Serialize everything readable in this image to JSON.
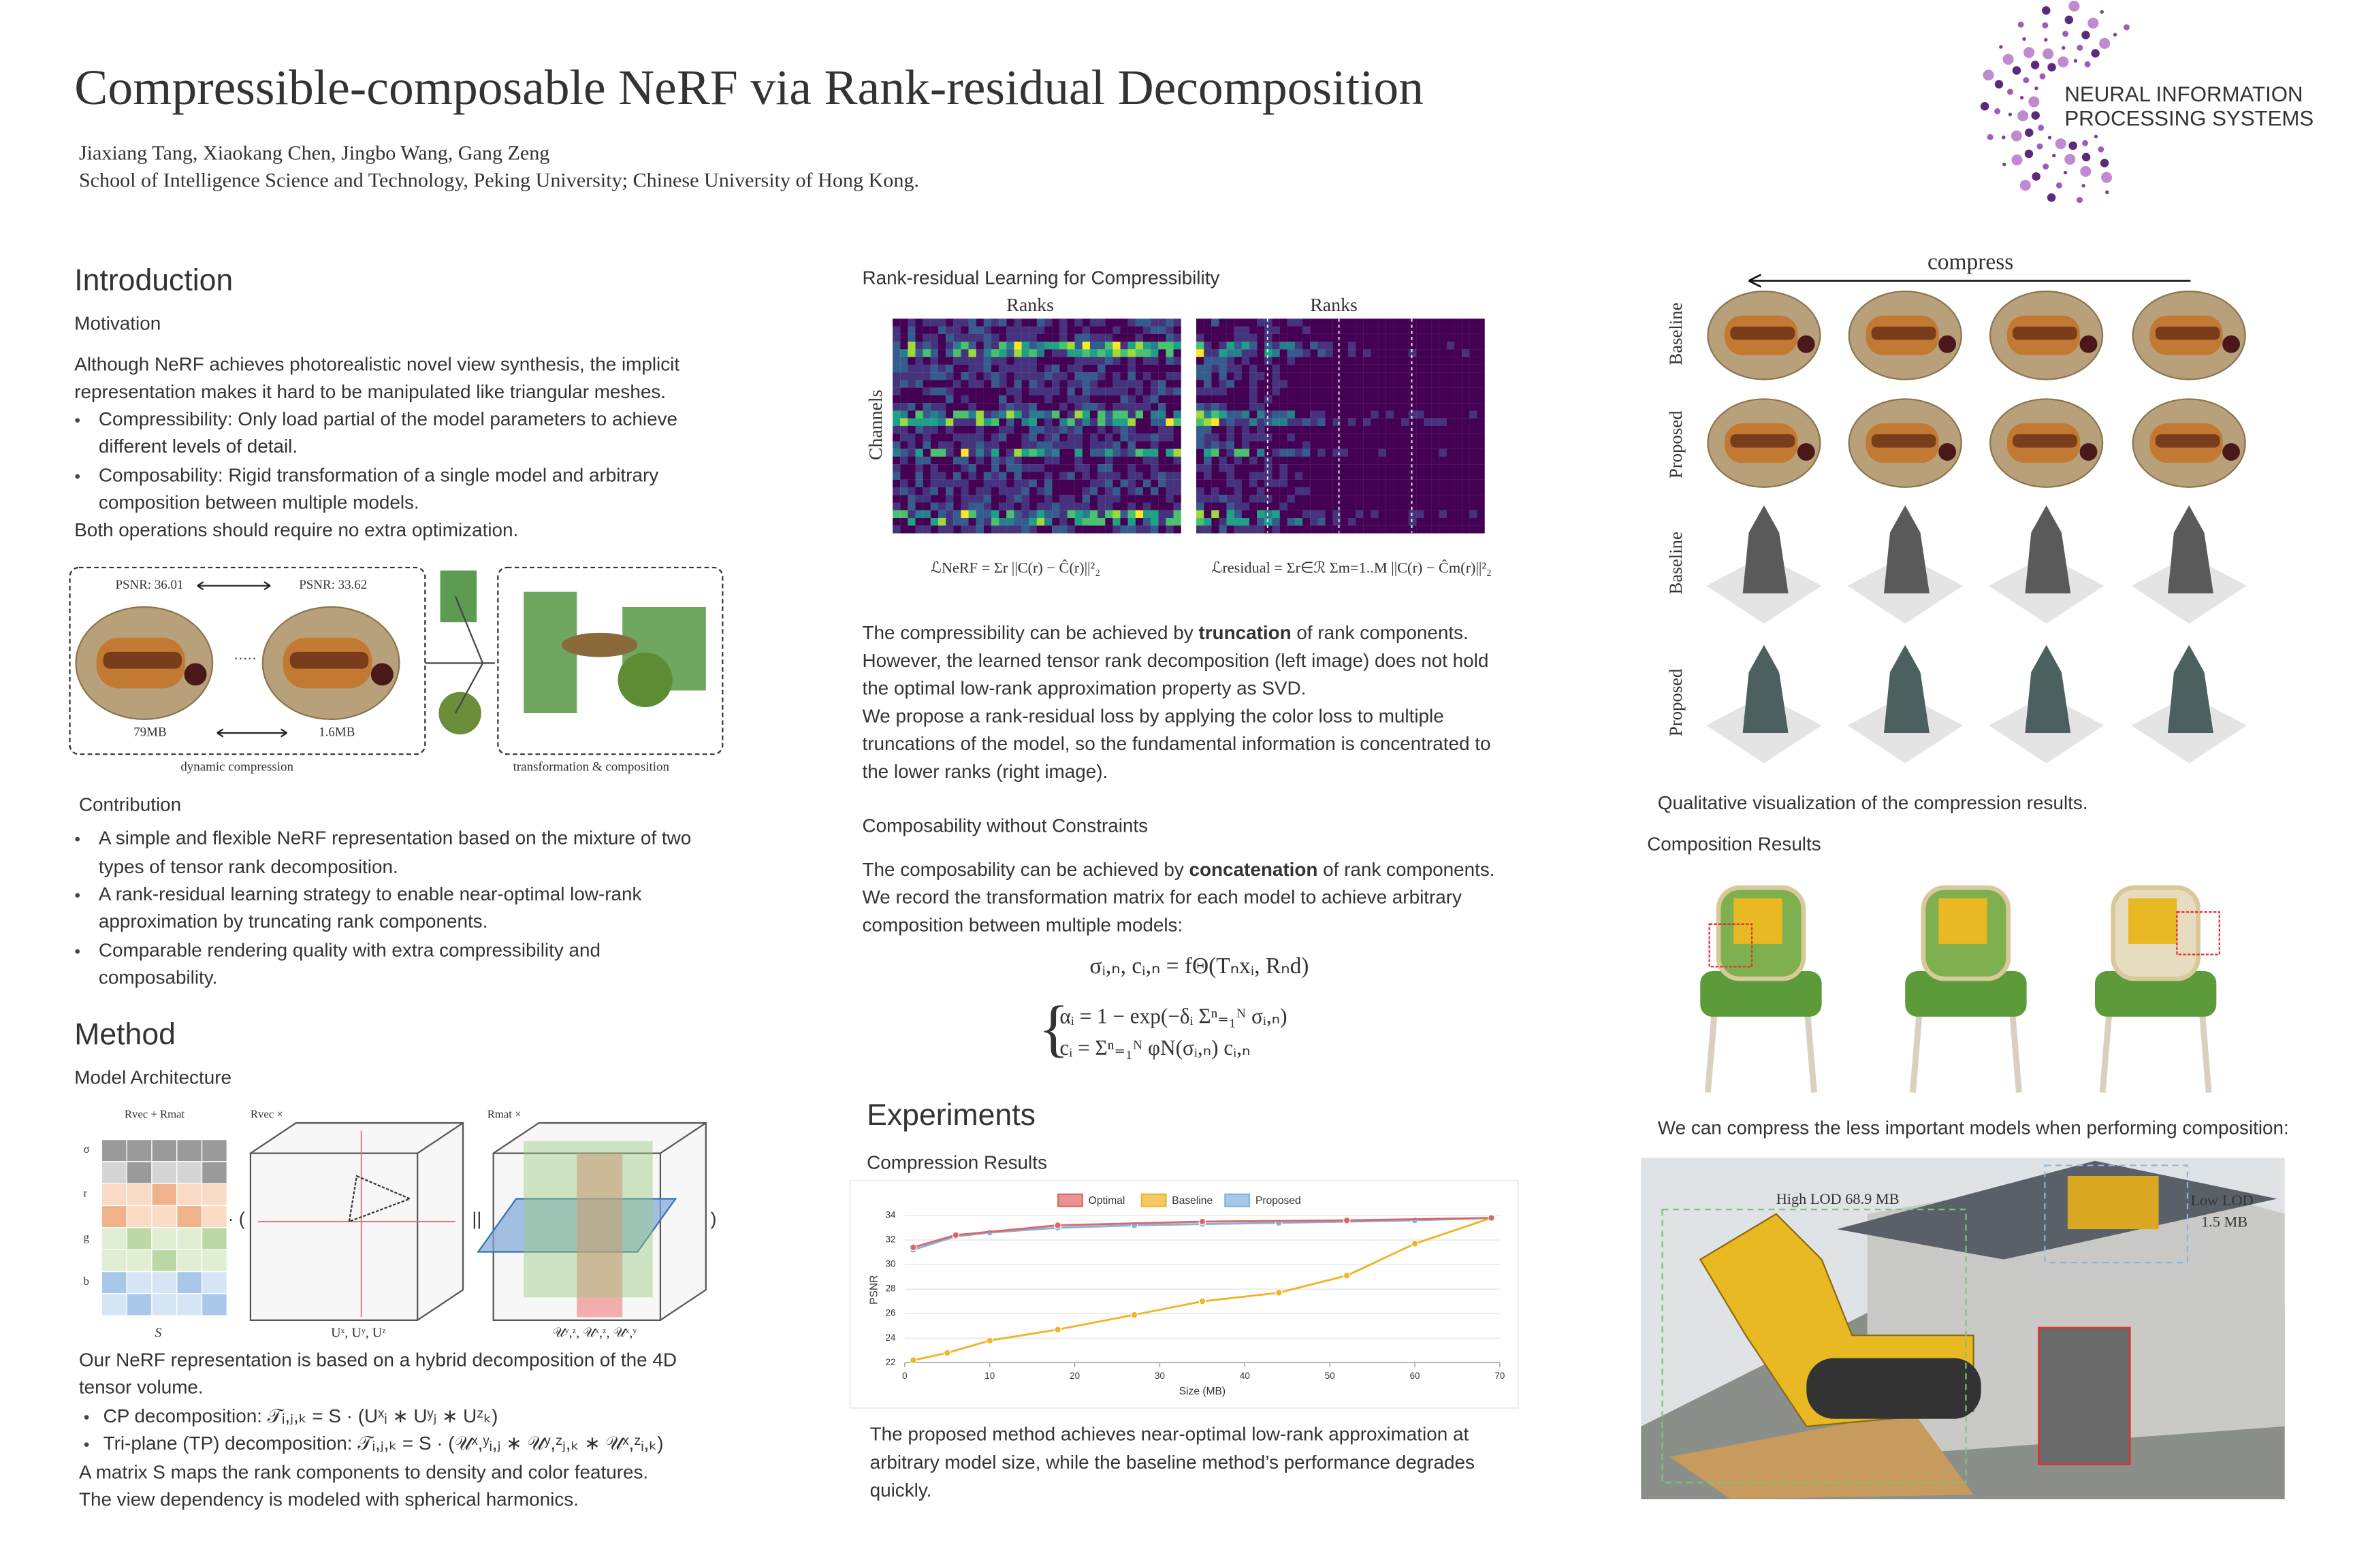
{
  "header": {
    "title": "Compressible-composable NeRF via Rank-residual Decomposition",
    "authors": "Jiaxiang Tang, Xiaokang Chen, Jingbo Wang, Gang Zeng",
    "affiliation": "School of Intelligence Science and Technology, Peking University; Chinese University of Hong Kong.",
    "logo": [
      "NEURAL INFORMATION",
      "PROCESSING SYSTEMS"
    ]
  },
  "introduction": {
    "heading": "Introduction",
    "motivation": {
      "heading": "Motivation",
      "lines": [
        "Although NeRF achieves photorealistic novel view synthesis, the implicit",
        "representation makes it hard to be manipulated like triangular meshes."
      ],
      "bullets": [
        [
          "Compressibility: Only load partial of the model parameters to achieve",
          "different levels of detail."
        ],
        [
          "Composability: Rigid transformation of a single model and arbitrary",
          "composition between multiple models."
        ]
      ],
      "closing": "Both operations should require no extra optimization."
    },
    "figure": {
      "psnr_high": "PSNR: 36.01",
      "psnr_low": "PSNR: 33.62",
      "size_high": "79MB",
      "size_low": "1.6MB",
      "caption_left": "dynamic compression",
      "caption_right": "transformation & composition"
    },
    "contribution": {
      "heading": "Contribution",
      "bullets": [
        [
          "A simple and flexible NeRF representation based on the mixture of two",
          "types of tensor rank decomposition."
        ],
        [
          "A rank-residual learning strategy to enable near-optimal low-rank",
          "approximation by truncating rank components."
        ],
        [
          "Comparable rendering quality with extra compressibility and",
          "composability."
        ]
      ]
    }
  },
  "method": {
    "heading": "Method",
    "subheading": "Model Architecture",
    "figure": {
      "label_sum": "Rvec + Rmat",
      "label_vec": "Rvec ×",
      "label_mat": "Rmat ×",
      "rows": [
        "σ",
        "r",
        "g",
        "b"
      ],
      "label_s": "S",
      "label_u_vec": "Uˣ, Uʸ, Uᶻ",
      "label_u_mat": "𝒰ʸ,ᶻ, 𝒰ˣ,ᶻ, 𝒰ˣ,ʸ"
    },
    "lines_before": [
      "Our NeRF representation is based on a hybrid decomposition of the 4D",
      "tensor volume."
    ],
    "bullets": [
      "CP decomposition:  𝒯ᵢ,ⱼ,ₖ = S · (Uˣᵢ ∗ Uʸⱼ ∗ Uᶻₖ)",
      "Tri-plane (TP) decomposition:  𝒯ᵢ,ⱼ,ₖ = S · (𝒰ˣ,ʸᵢ,ⱼ ∗ 𝒰ʸ,ᶻⱼ,ₖ ∗ 𝒰ˣ,ᶻᵢ,ₖ)"
    ],
    "lines_after": [
      "A matrix S maps the rank components to density and color features.",
      "The view dependency is modeled with spherical harmonics."
    ]
  },
  "compressibility": {
    "heading": "Rank-residual Learning for Compressibility",
    "axis_x": "Ranks",
    "axis_y": "Channels",
    "loss_nerf": "ℒNeRF = Σr ||C(r) − Ĉ(r)||²₂",
    "loss_residual": "ℒresidual = Σr∈ℛ Σm=1..M ||C(r) − Ĉm(r)||²₂",
    "paragraph": [
      [
        "The compressibility can be achieved by ",
        "truncation",
        " of rank components."
      ],
      [
        "However,  the learned tensor rank decomposition (left image) does not hold"
      ],
      [
        "the optimal low-rank approximation property as SVD."
      ],
      [
        "We propose a rank-residual loss by applying the color loss to multiple"
      ],
      [
        "truncations of the model, so the fundamental information is concentrated to"
      ],
      [
        "the lower ranks (right image)."
      ]
    ]
  },
  "composability": {
    "heading": "Composability without Constraints",
    "paragraph": [
      [
        "The composability can be achieved by ",
        "concatenation",
        " of rank components."
      ],
      [
        "We record the transformation matrix for each model to achieve arbitrary"
      ],
      [
        "composition between multiple models:"
      ]
    ],
    "equations": [
      "σᵢ,ₙ, cᵢ,ₙ = fΘ(Tₙxᵢ, Rₙd)",
      "αᵢ = 1 − exp(−δᵢ Σⁿ₌₁ᴺ σᵢ,ₙ)",
      "cᵢ = Σⁿ₌₁ᴺ φN(σᵢ,ₙ) cᵢ,ₙ"
    ]
  },
  "experiments": {
    "heading": "Experiments",
    "subheading": "Compression Results",
    "chart": {
      "type": "line",
      "xlabel": "Size (MB)",
      "ylabel": "PSNR",
      "xlim": [
        0,
        70
      ],
      "ylim": [
        22,
        34
      ],
      "xticks": [
        0,
        10,
        20,
        30,
        40,
        50,
        60,
        70
      ],
      "yticks": [
        22,
        24,
        26,
        28,
        30,
        32,
        34
      ],
      "grid": true,
      "series": [
        {
          "name": "Optimal",
          "color": "#e06666",
          "x": [
            1,
            6,
            18,
            35,
            52,
            69
          ],
          "values": [
            31.4,
            32.4,
            33.2,
            33.5,
            33.6,
            33.8
          ]
        },
        {
          "name": "Baseline",
          "color": "#f0b429",
          "x": [
            1,
            5,
            10,
            18,
            27,
            35,
            44,
            52,
            60,
            69
          ],
          "values": [
            22.2,
            22.8,
            23.8,
            24.7,
            25.9,
            27.0,
            27.7,
            29.1,
            31.7,
            33.8
          ]
        },
        {
          "name": "Proposed",
          "color": "#7fb3e0",
          "x": [
            1,
            6,
            10,
            18,
            27,
            35,
            44,
            52,
            60,
            69
          ],
          "values": [
            31.2,
            32.3,
            32.6,
            33.0,
            33.2,
            33.3,
            33.4,
            33.5,
            33.6,
            33.8
          ]
        }
      ]
    },
    "caption": [
      "The proposed method achieves near-optimal low-rank approximation at",
      "arbitrary model size, while the baseline method’s performance degrades",
      "quickly."
    ]
  },
  "qualitative": {
    "arrow_label": "compress",
    "row_labels": [
      "Baseline",
      "Proposed",
      "Baseline",
      "Proposed"
    ],
    "caption": "Qualitative visualization of the compression results."
  },
  "composition": {
    "heading": "Composition Results",
    "caption": "We can compress the less important models when performing composition:",
    "lod_high": "High LOD  68.9 MB",
    "lod_low": [
      "Low LOD",
      "1.5 MB"
    ]
  }
}
